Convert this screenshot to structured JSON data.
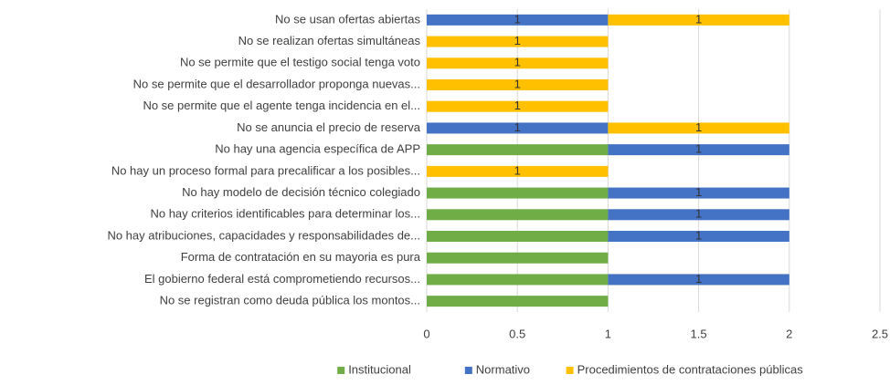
{
  "chart_data": {
    "type": "stacked-barh",
    "categories": [
      "No se usan ofertas abiertas",
      "No se realizan ofertas simultáneas",
      "No se permite que el testigo social tenga voto",
      "No se permite que el desarrollador proponga nuevas...",
      "No se permite que el agente tenga incidencia en el...",
      "No se anuncia el precio de reserva",
      "No hay una agencia específica de APP",
      "No hay un proceso formal para precalificar a los posibles...",
      "No hay modelo de decisión técnico colegiado",
      "No hay criterios identificables para determinar los...",
      "No hay atribuciones, capacidades y responsabilidades de...",
      "Forma de contratación en su mayoria es pura",
      "El gobierno federal está comprometiendo recursos...",
      "No se registran como deuda pública los montos..."
    ],
    "series": [
      {
        "name": "Institucional",
        "color": "#70ad47",
        "data_labels": false,
        "values": [
          null,
          null,
          null,
          null,
          null,
          null,
          1,
          null,
          1,
          1,
          1,
          1,
          1,
          1
        ]
      },
      {
        "name": "Normativo",
        "color": "#4472c4",
        "data_labels": true,
        "values": [
          1,
          null,
          null,
          null,
          null,
          1,
          1,
          null,
          1,
          1,
          1,
          null,
          1,
          null
        ]
      },
      {
        "name": "Procedimientos de contrataciones públicas",
        "color": "#ffc000",
        "data_labels": true,
        "values": [
          1,
          1,
          1,
          1,
          1,
          1,
          null,
          1,
          null,
          null,
          null,
          null,
          null,
          null
        ]
      }
    ],
    "xlim": [
      0,
      2.5
    ],
    "xticks": [
      0,
      0.5,
      1,
      1.5,
      2,
      2.5
    ],
    "grid": true,
    "legend": "bottom"
  }
}
